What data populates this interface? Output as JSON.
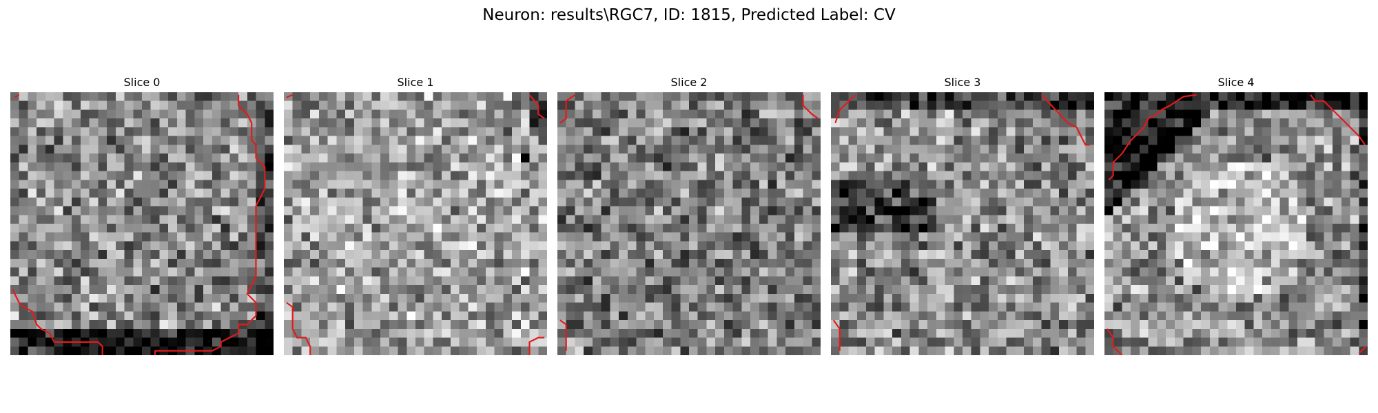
{
  "figure": {
    "title": "Neuron: results\\RGC7, ID: 1815, Predicted Label: CV"
  },
  "panels": [
    {
      "title": "Slice 0",
      "grid_size": 30,
      "seed": 101,
      "contour_color": "#e31a1c",
      "dark_regions": "bottom band, right edge"
    },
    {
      "title": "Slice 1",
      "grid_size": 30,
      "seed": 202,
      "contour_color": "#e31a1c",
      "dark_regions": "corners"
    },
    {
      "title": "Slice 2",
      "grid_size": 30,
      "seed": 303,
      "contour_color": "#e31a1c",
      "dark_regions": "uniform noise"
    },
    {
      "title": "Slice 3",
      "grid_size": 30,
      "seed": 404,
      "contour_color": "#e31a1c",
      "dark_regions": "left-center dark band"
    },
    {
      "title": "Slice 4",
      "grid_size": 30,
      "seed": 505,
      "contour_color": "#e31a1c",
      "dark_regions": "top-left dark arc, bright center"
    }
  ],
  "colormap": "gray"
}
